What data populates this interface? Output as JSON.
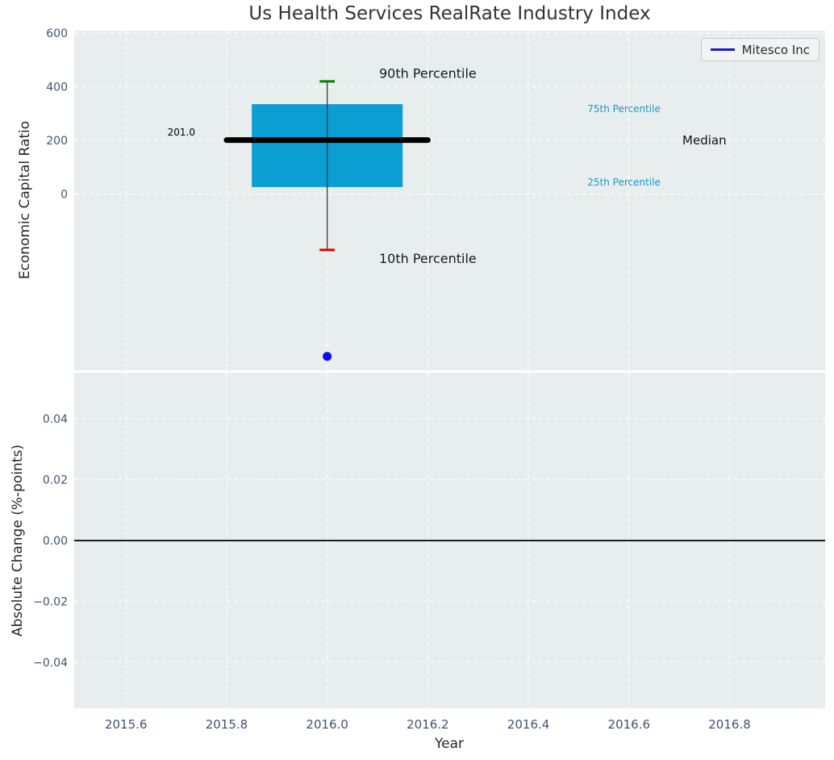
{
  "figure": {
    "bg": "#ffffff",
    "axes_bg": "#e8edee",
    "grid_color": "#ffffff",
    "tick_color": "#42526e",
    "label_color": "#262626",
    "title_color": "#333333"
  },
  "chart_data": [
    {
      "type": "boxplot",
      "title": "Us Health Services RealRate Industry Index",
      "xlabel": "Year",
      "ylabel": "Economic Capital Ratio",
      "xlim": [
        2015.497,
        2016.99
      ],
      "ylim": [
        -657,
        609
      ],
      "xticks": [
        2015.6,
        2015.8,
        2016.0,
        2016.2,
        2016.4,
        2016.6,
        2016.8
      ],
      "xtick_labels": [
        "2015.6",
        "2015.8",
        "2016.0",
        "2016.2",
        "2016.4",
        "2016.6",
        "2016.8"
      ],
      "yticks": [
        600,
        400,
        200,
        0
      ],
      "ytick_labels": [
        "600",
        "400",
        "200",
        "0"
      ],
      "grid": {
        "style": "dashed",
        "color": "#ffffff"
      },
      "box": {
        "x": 2016.0,
        "p90": 420,
        "p75": 335,
        "median": 201.0,
        "p25": 26,
        "p10": -208,
        "box_halfwidth": 0.15,
        "median_halfwidth": 0.2,
        "cap_halfwidth": 0.015,
        "box_color": "#0a9ed3",
        "median_color": "#000000",
        "p90_cap_color": "#008000",
        "p10_cap_color": "#e80000",
        "whisker_color": "#3c3c3c"
      },
      "points": [
        {
          "name": "Mitesco Inc",
          "x": 2016.0,
          "y": -605,
          "color": "#0d0de8"
        }
      ],
      "annotations": [
        {
          "text": "201.0",
          "x": 2015.71,
          "y": 231,
          "size": 12,
          "color": "#000000"
        },
        {
          "text": "90th Percentile",
          "x": 2016.2,
          "y": 450,
          "size": 16,
          "color": "#1a1a1a"
        },
        {
          "text": "10th Percentile",
          "x": 2016.2,
          "y": -240,
          "size": 16,
          "color": "#1a1a1a"
        },
        {
          "text": "75th Percentile",
          "x": 2016.59,
          "y": 318,
          "size": 12,
          "color": "#2196c3"
        },
        {
          "text": "25th Percentile",
          "x": 2016.59,
          "y": 45,
          "size": 12,
          "color": "#2196c3"
        },
        {
          "text": "Median",
          "x": 2016.75,
          "y": 201,
          "size": 15,
          "color": "#111111"
        }
      ],
      "legend": {
        "label": "Mitesco Inc",
        "line_color": "#1a1acb",
        "position": "upper right"
      }
    },
    {
      "type": "line",
      "xlabel": "Year",
      "ylabel": "Absolute Change (%-points)",
      "xlim": [
        2015.497,
        2016.99
      ],
      "ylim": [
        -0.0551,
        0.0551
      ],
      "xticks": [
        2015.6,
        2015.8,
        2016.0,
        2016.2,
        2016.4,
        2016.6,
        2016.8
      ],
      "xtick_labels": [
        "2015.6",
        "2015.8",
        "2016.0",
        "2016.2",
        "2016.4",
        "2016.6",
        "2016.8"
      ],
      "yticks": [
        0.04,
        0.02,
        0.0,
        -0.02,
        -0.04
      ],
      "ytick_labels": [
        "0.04",
        "0.02",
        "0.00",
        "−0.02",
        "−0.04"
      ],
      "grid": {
        "style": "dashed",
        "color": "#ffffff"
      },
      "zero_line": {
        "y": 0.0,
        "color": "#000000"
      },
      "series": []
    }
  ]
}
